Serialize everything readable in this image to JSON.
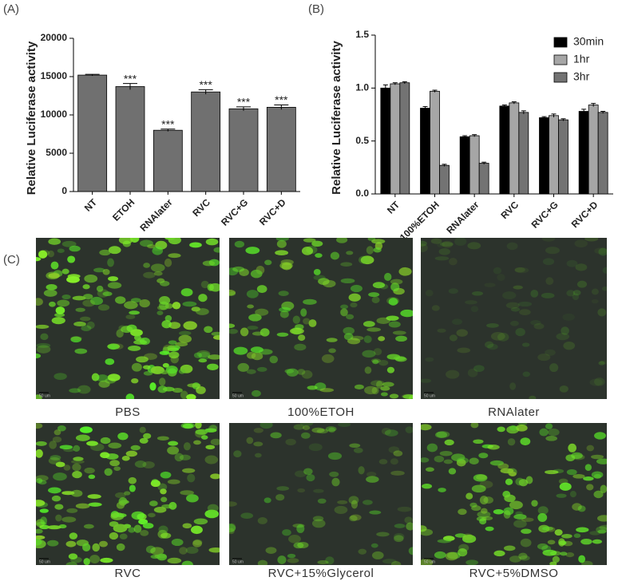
{
  "chart_data": [
    {
      "type": "bar",
      "panel_label": "(A)",
      "y_label": "Relative Luciferase  activity",
      "categories": [
        "NT",
        "ETOH",
        "RNAlater",
        "RVC",
        "RVC+G",
        "RVC+D"
      ],
      "values": [
        15200,
        13700,
        8000,
        13000,
        10800,
        11000
      ],
      "errors": [
        100,
        400,
        150,
        300,
        250,
        300
      ],
      "annotations": [
        null,
        "***",
        "***",
        "***",
        "***",
        "***"
      ],
      "color": "#707070",
      "ylim": [
        0,
        20000
      ],
      "yticks": [
        0,
        5000,
        10000,
        15000,
        20000
      ]
    },
    {
      "type": "bar",
      "panel_label": "(B)",
      "y_label": "Relative Luciferase  activity",
      "categories": [
        "NT",
        "100%ETOH",
        "RNAlater",
        "RVC",
        "RVC+G",
        "RVC+D"
      ],
      "series": [
        {
          "name": "30min",
          "color": "#000000",
          "values": [
            1.0,
            0.81,
            0.54,
            0.83,
            0.72,
            0.78
          ],
          "errors": [
            0.03,
            0.015,
            0.01,
            0.01,
            0.01,
            0.02
          ]
        },
        {
          "name": "1hr",
          "color": "#a6a6a6",
          "values": [
            1.04,
            0.97,
            0.55,
            0.86,
            0.74,
            0.84
          ],
          "errors": [
            0.01,
            0.01,
            0.01,
            0.01,
            0.015,
            0.015
          ]
        },
        {
          "name": "3hr",
          "color": "#737373",
          "values": [
            1.05,
            0.27,
            0.29,
            0.77,
            0.7,
            0.77
          ],
          "errors": [
            0.01,
            0.01,
            0.01,
            0.015,
            0.01,
            0.01
          ]
        }
      ],
      "legend": "upper right",
      "ylim": [
        0,
        1.5
      ],
      "yticks": [
        {
          "value": 0,
          "label": "0.0"
        },
        0.5,
        {
          "value": 1,
          "label": "1.0"
        },
        1.5
      ]
    }
  ],
  "micrographs": {
    "panel_label": "(C)",
    "images": [
      {
        "caption": "PBS",
        "scale_bar": "50 um"
      },
      {
        "caption": "100%ETOH",
        "scale_bar": "50 um"
      },
      {
        "caption": "RNAlater",
        "scale_bar": "50 um"
      },
      {
        "caption": "RVC",
        "scale_bar": "50 um"
      },
      {
        "caption": "RVC+15%Glycerol",
        "scale_bar": "50 um"
      },
      {
        "caption": "RVC+5%DMSO",
        "scale_bar": "50 um"
      }
    ]
  }
}
